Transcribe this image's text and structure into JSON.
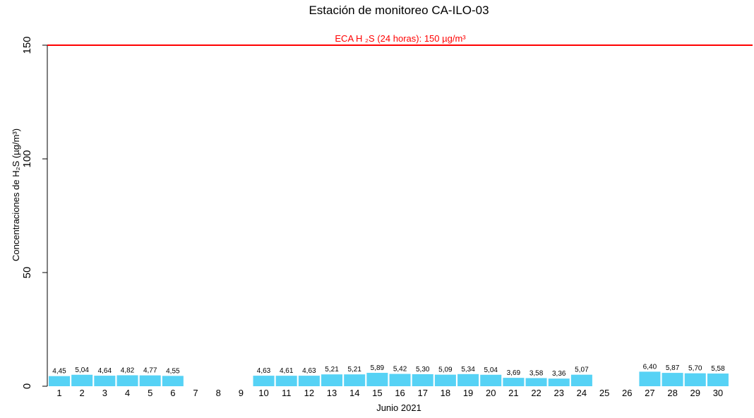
{
  "chart_data": {
    "type": "bar",
    "title": "Estación de monitoreo  CA-ILO-03",
    "xlabel": "Junio 2021",
    "ylabel": "Concentraciones de H₂S (µg/m³)",
    "ylim": [
      0,
      150
    ],
    "yticks": [
      0,
      50,
      100,
      150
    ],
    "categories": [
      "1",
      "2",
      "3",
      "4",
      "5",
      "6",
      "7",
      "8",
      "9",
      "10",
      "11",
      "12",
      "13",
      "14",
      "15",
      "16",
      "17",
      "18",
      "19",
      "20",
      "21",
      "22",
      "23",
      "24",
      "25",
      "26",
      "27",
      "28",
      "29",
      "30"
    ],
    "values": [
      4.45,
      5.04,
      4.64,
      4.82,
      4.77,
      4.55,
      null,
      null,
      null,
      4.63,
      4.61,
      4.63,
      5.21,
      5.21,
      5.89,
      5.42,
      5.3,
      5.09,
      5.34,
      5.04,
      3.69,
      3.58,
      3.36,
      5.07,
      null,
      null,
      6.4,
      5.87,
      5.7,
      5.58
    ],
    "value_labels": [
      "4,45",
      "5,04",
      "4,64",
      "4,82",
      "4,77",
      "4,55",
      "",
      "",
      "",
      "4,63",
      "4,61",
      "4,63",
      "5,21",
      "5,21",
      "5,89",
      "5,42",
      "5,30",
      "5,09",
      "5,34",
      "5,04",
      "3,69",
      "3,58",
      "3,36",
      "5,07",
      "",
      "",
      "6,40",
      "5,87",
      "5,70",
      "5,58"
    ],
    "bar_color": "#56D2F5",
    "reference_line": {
      "value": 150,
      "label": "ECA H ₂S (24 horas): 150 µg/m³",
      "color": "#FF0000"
    },
    "grid": false
  }
}
